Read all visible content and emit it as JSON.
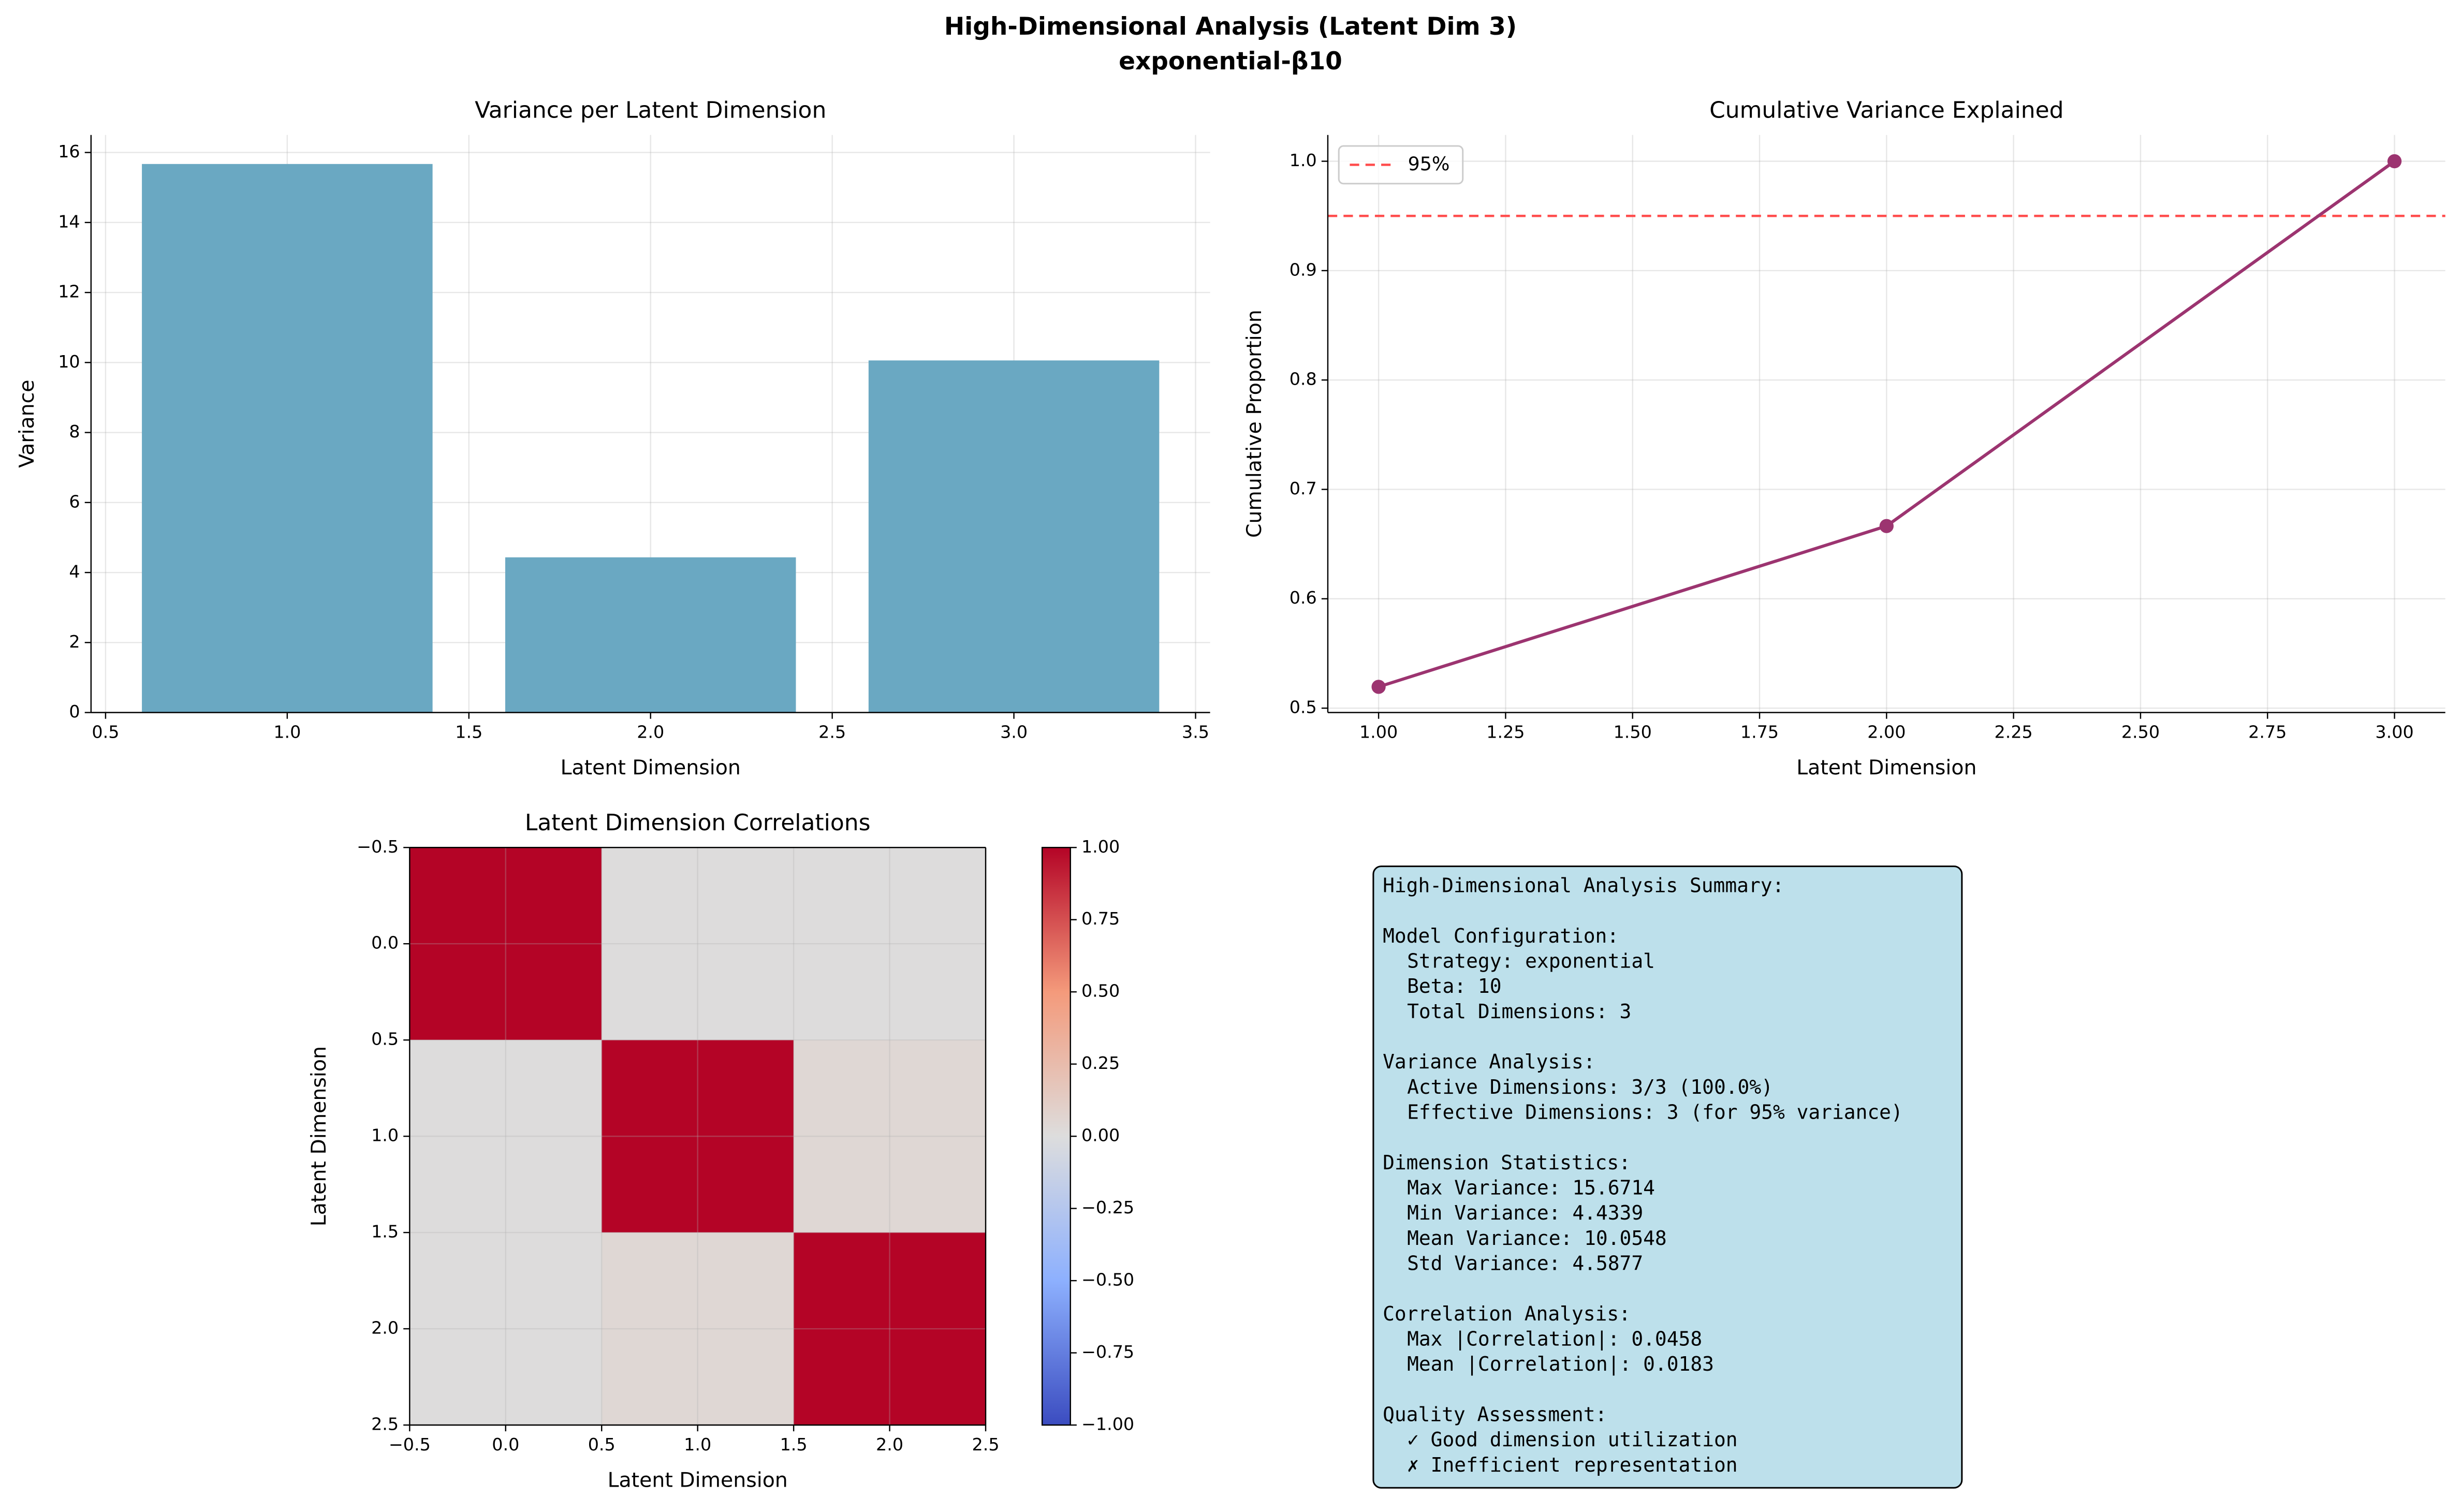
{
  "title": "High-Dimensional Analysis (Latent Dim 3)",
  "subtitle": "exponential-β10",
  "chart_data": [
    {
      "type": "bar",
      "title": "Variance per Latent Dimension",
      "xlabel": "Latent Dimension",
      "ylabel": "Variance",
      "x": [
        1,
        2,
        3
      ],
      "values": [
        15.6714,
        4.4339,
        10.0591
      ],
      "color": "#6aa8c2",
      "xlim": [
        0.46,
        3.54
      ],
      "xticks": [
        {
          "value": 0.5,
          "label": "0.5"
        },
        {
          "value": 1,
          "label": "1.0"
        },
        {
          "value": 1.5,
          "label": "1.5"
        },
        {
          "value": 2,
          "label": "2.0"
        },
        {
          "value": 2.5,
          "label": "2.5"
        },
        {
          "value": 3,
          "label": "3.0"
        },
        {
          "value": 3.5,
          "label": "3.5"
        }
      ],
      "ylim": [
        0,
        16.5
      ],
      "yticks": [
        0,
        2,
        4,
        6,
        8,
        10,
        12,
        14,
        16
      ],
      "grid": true
    },
    {
      "type": "line",
      "title": "Cumulative Variance Explained",
      "xlabel": "Latent Dimension",
      "ylabel": "Cumulative Proportion",
      "x": [
        1,
        2,
        3
      ],
      "values": [
        0.5195,
        0.6665,
        1.0
      ],
      "color": "#9c3470",
      "hlines": [
        {
          "value": 0.95,
          "label": "95%",
          "color": "#ff4d4d"
        }
      ],
      "legend": "upper left",
      "xlim": [
        0.9,
        3.1
      ],
      "xticks": [
        {
          "value": 1,
          "label": "1.00"
        },
        {
          "value": 1.25,
          "label": "1.25"
        },
        {
          "value": 1.5,
          "label": "1.50"
        },
        {
          "value": 1.75,
          "label": "1.75"
        },
        {
          "value": 2,
          "label": "2.00"
        },
        {
          "value": 2.25,
          "label": "2.25"
        },
        {
          "value": 2.5,
          "label": "2.50"
        },
        {
          "value": 2.75,
          "label": "2.75"
        },
        {
          "value": 3,
          "label": "3.00"
        }
      ],
      "ylim": [
        0.496,
        1.024
      ],
      "yticks": [
        {
          "value": 0.5,
          "label": "0.5"
        },
        {
          "value": 0.6,
          "label": "0.6"
        },
        {
          "value": 0.7,
          "label": "0.7"
        },
        {
          "value": 0.8,
          "label": "0.8"
        },
        {
          "value": 0.9,
          "label": "0.9"
        },
        {
          "value": 1,
          "label": "1.0"
        }
      ],
      "grid": true
    },
    {
      "type": "heatmap",
      "title": "Latent Dimension Correlations",
      "xlabel": "Latent Dimension",
      "ylabel": "Latent Dimension",
      "matrix": [
        [
          1,
          0.0046,
          0.0045
        ],
        [
          0.0046,
          1,
          0.0458
        ],
        [
          0.0045,
          0.0458,
          1
        ]
      ],
      "colormap": "coolwarm",
      "xlim": [
        -0.5,
        2.5
      ],
      "ylim": [
        2.5,
        -0.5
      ],
      "xticks": [
        {
          "value": -0.5,
          "label": "−0.5"
        },
        {
          "value": 0,
          "label": "0.0"
        },
        {
          "value": 0.5,
          "label": "0.5"
        },
        {
          "value": 1,
          "label": "1.0"
        },
        {
          "value": 1.5,
          "label": "1.5"
        },
        {
          "value": 2,
          "label": "2.0"
        },
        {
          "value": 2.5,
          "label": "2.5"
        }
      ],
      "yticks": [
        {
          "value": -0.5,
          "label": "−0.5"
        },
        {
          "value": 0,
          "label": "0.0"
        },
        {
          "value": 0.5,
          "label": "0.5"
        },
        {
          "value": 1,
          "label": "1.0"
        },
        {
          "value": 1.5,
          "label": "1.5"
        },
        {
          "value": 2,
          "label": "2.0"
        },
        {
          "value": 2.5,
          "label": "2.5"
        }
      ],
      "clim": [
        -1,
        1
      ],
      "cticks": [
        {
          "value": -1,
          "label": "−1.00"
        },
        {
          "value": -0.75,
          "label": "−0.75"
        },
        {
          "value": -0.5,
          "label": "−0.50"
        },
        {
          "value": -0.25,
          "label": "−0.25"
        },
        {
          "value": 0,
          "label": "0.00"
        },
        {
          "value": 0.25,
          "label": "0.25"
        },
        {
          "value": 0.5,
          "label": "0.50"
        },
        {
          "value": 0.75,
          "label": "0.75"
        },
        {
          "value": 1,
          "label": "1.00"
        }
      ],
      "grid": true
    }
  ],
  "summary": {
    "title": "High-Dimensional Analysis Summary:",
    "sections": [
      {
        "heading": "Model Configuration:",
        "lines": [
          "Strategy: exponential",
          "Beta: 10",
          "Total Dimensions: 3"
        ]
      },
      {
        "heading": "Variance Analysis:",
        "lines": [
          "Active Dimensions: 3/3 (100.0%)",
          "Effective Dimensions: 3 (for 95% variance)"
        ]
      },
      {
        "heading": "Dimension Statistics:",
        "lines": [
          "Max Variance: 15.6714",
          "Min Variance: 4.4339",
          "Mean Variance: 10.0548",
          "Std Variance: 4.5877"
        ]
      },
      {
        "heading": "Correlation Analysis:",
        "lines": [
          "Max |Correlation|: 0.0458",
          "Mean |Correlation|: 0.0183"
        ]
      },
      {
        "heading": "Quality Assessment:",
        "lines": [
          "✓ Good dimension utilization",
          "✗ Inefficient representation"
        ]
      }
    ]
  }
}
